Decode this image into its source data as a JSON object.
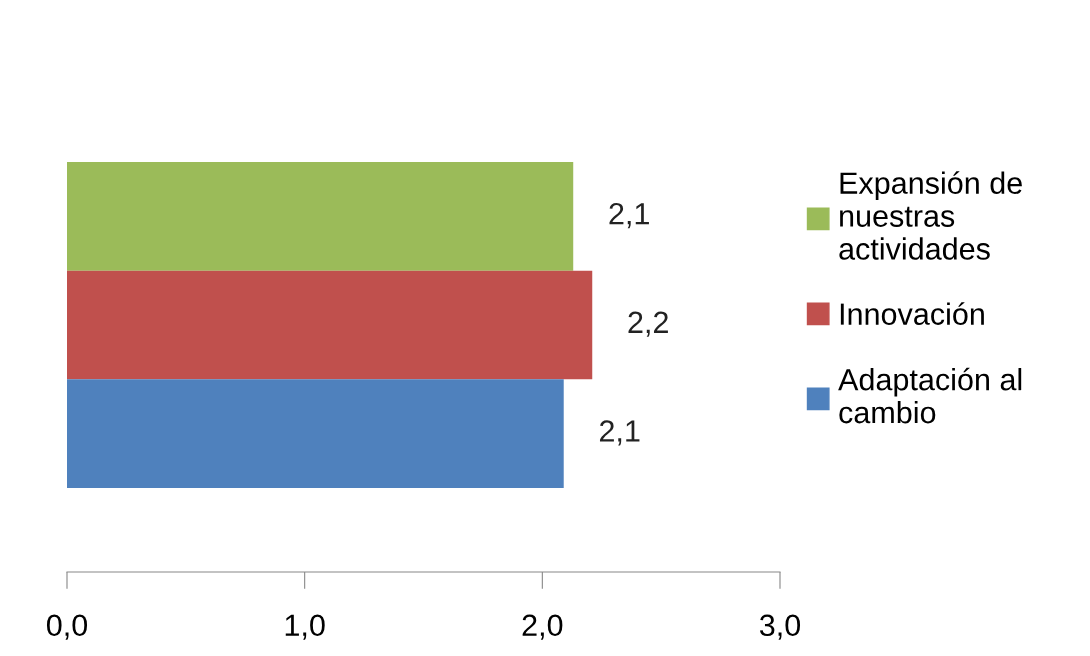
{
  "chart_data": {
    "type": "bar",
    "orientation": "horizontal",
    "categories": [
      null
    ],
    "series": [
      {
        "name": "Expansión de\nnuestras\nactividades",
        "color": "#9bbb59",
        "values": [
          2.13
        ],
        "value_labels": [
          "2,1"
        ]
      },
      {
        "name": "Innovación",
        "color": "#c0504d",
        "values": [
          2.21
        ],
        "value_labels": [
          "2,2"
        ]
      },
      {
        "name": "Adaptación al\ncambio",
        "color": "#4f81bd",
        "values": [
          2.09
        ],
        "value_labels": [
          "2,1"
        ]
      }
    ],
    "xlim": [
      0,
      3
    ],
    "xticks": [
      {
        "value": 0,
        "label": "0,0"
      },
      {
        "value": 1,
        "label": "1,0"
      },
      {
        "value": 2,
        "label": "2,0"
      },
      {
        "value": 3,
        "label": "3,0"
      }
    ],
    "grid": false,
    "legend": "right"
  }
}
